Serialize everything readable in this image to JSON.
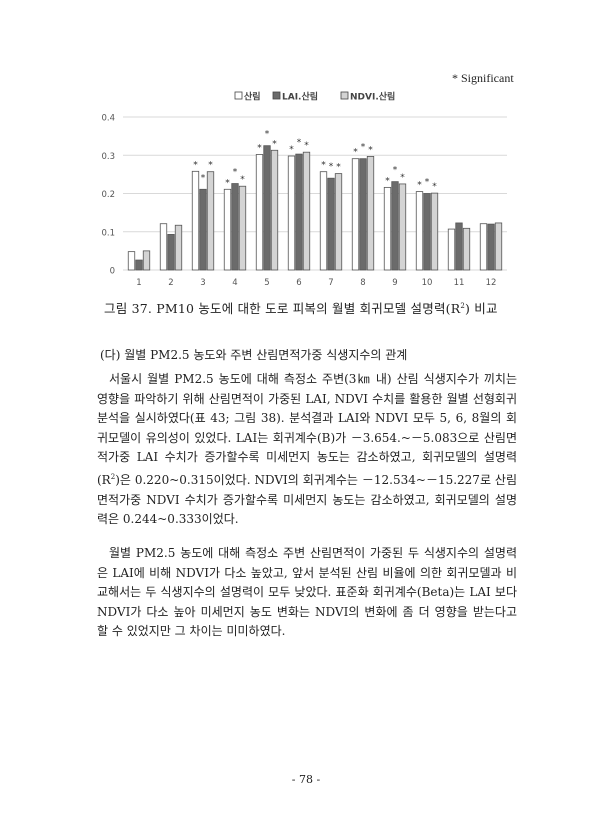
{
  "significance_note": "* Significant",
  "chart_data": {
    "type": "bar",
    "categories": [
      "1",
      "2",
      "3",
      "4",
      "5",
      "6",
      "7",
      "8",
      "9",
      "10",
      "11",
      "12"
    ],
    "series": [
      {
        "name": "산림",
        "color": "#ffffff",
        "values": [
          0.048,
          0.121,
          0.258,
          0.211,
          0.302,
          0.298,
          0.257,
          0.291,
          0.216,
          0.205,
          0.107,
          0.121
        ]
      },
      {
        "name": "LAI.산림",
        "color": "#6b6b6b",
        "values": [
          0.026,
          0.093,
          0.211,
          0.226,
          0.325,
          0.303,
          0.24,
          0.291,
          0.231,
          0.2,
          0.123,
          0.12
        ]
      },
      {
        "name": "NDVI.산림",
        "color": "#d4d4d4",
        "values": [
          0.05,
          0.117,
          0.257,
          0.219,
          0.313,
          0.308,
          0.252,
          0.297,
          0.225,
          0.201,
          0.109,
          0.123
        ]
      }
    ],
    "significant_months": [
      "3",
      "4",
      "5",
      "6",
      "7",
      "8",
      "9",
      "10"
    ],
    "significance_marker": "*",
    "yticks": [
      "0",
      "0.1",
      "0.2",
      "0.3",
      "0.4"
    ],
    "ylim": [
      0,
      0.4
    ],
    "grid": true,
    "legend": "top"
  },
  "caption": {
    "prefix": "그림 37. PM10 농도에 대한 도로 피복의 월별 회귀모델 설명력(R",
    "sup": "2",
    "suffix": ") 비교"
  },
  "heading": "(다) 월별 PM2.5 농도와 주변 산림면적가중 식생지수의 관계",
  "para1": {
    "a": "서울시 월별 PM2.5 농도에 대해 측정소 주변(3㎞ 내) 산림 식생지수가 끼치는 영향을 파악하기 위해 산림면적이 가중된 LAI, NDVI 수치를 활용한 월별 선형회귀분석을 실시하였다(표 43; 그림 38). 분석결과 LAI와 NDVI 모두 5, 6, 8월의 회귀모델이 유의성이 있었다. LAI는 회귀계수(B)가 －3.654.~－5.083으로 산림면적가중 LAI 수치가 증가할수록 미세먼지 농도는 감소하였고, 회귀모델의 설명력(R",
    "sup": "2",
    "b": ")은 0.220~0.315이었다. NDVI의 회귀계수는 －12.534~－15.227로 산림면적가중 NDVI 수치가 증가할수록 미세먼지 농도는 감소하였고, 회귀모델의 설명력은 0.244~0.333이었다."
  },
  "para2": "월별 PM2.5 농도에 대해 측정소 주변 산림면적이 가중된 두 식생지수의 설명력은 LAI에 비해 NDVI가 다소 높았고, 앞서 분석된 산림 비율에 의한 회귀모델과 비교해서는 두 식생지수의 설명력이 모두 낮았다. 표준화 회귀계수(Beta)는 LAI 보다 NDVI가 다소 높아 미세먼지 농도 변화는 NDVI의 변화에 좀 더 영향을 받는다고 할 수 있었지만 그 차이는 미미하였다.",
  "page_number": "- 78 -"
}
